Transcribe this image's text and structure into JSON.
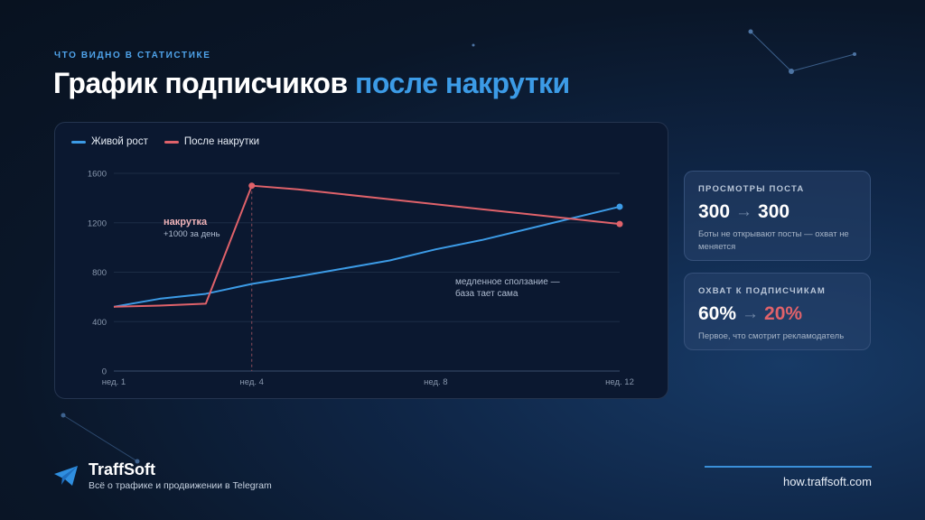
{
  "eyebrow": "ЧТО ВИДНО В СТАТИСТИКЕ",
  "title": {
    "main": "График подписчиков",
    "accent": "после накрутки"
  },
  "chart_data": {
    "type": "line",
    "x_labels": [
      "нед. 1",
      "нед. 4",
      "нед. 8",
      "нед. 12"
    ],
    "x_label_positions": [
      1,
      4,
      8,
      12
    ],
    "x": [
      1,
      2,
      3,
      4,
      5,
      6,
      7,
      8,
      9,
      10,
      11,
      12
    ],
    "ylim": [
      0,
      1600
    ],
    "y_ticks": [
      0,
      400,
      800,
      1200,
      1600
    ],
    "grid": true,
    "legend_placement": "top-left",
    "series": [
      {
        "name": "Живой рост",
        "color": "#3c9be6",
        "values": [
          520,
          585,
          625,
          705,
          765,
          830,
          895,
          985,
          1060,
          1150,
          1240,
          1330
        ]
      },
      {
        "name": "После накрутки",
        "color": "#e0626a",
        "values": [
          520,
          530,
          545,
          1500,
          1470,
          1430,
          1390,
          1350,
          1310,
          1270,
          1230,
          1190
        ]
      }
    ],
    "spike_week": 4,
    "annotations": {
      "spike": {
        "title": "накрутка",
        "subtitle": "+1000 за день"
      },
      "decline": {
        "line1": "медленное сползание —",
        "line2": "база тает сама"
      }
    }
  },
  "stats": [
    {
      "label": "ПРОСМОТРЫ ПОСТА",
      "from": "300",
      "arrow": "→",
      "to": "300",
      "desc": "Боты не открывают посты — охват не меняется"
    },
    {
      "label": "ОХВАТ К ПОДПИСЧИКАМ",
      "from": "60%",
      "arrow": "→",
      "to": "20%",
      "desc": "Первое, что смотрит рекламодатель"
    }
  ],
  "footer": {
    "brand": "TraffSoft",
    "tagline": "Всё о трафике и продвижении в Telegram",
    "url": "how.traffsoft.com"
  },
  "colors": {
    "accent": "#3c9be6",
    "danger": "#e0626a",
    "background": "#0a1628"
  }
}
